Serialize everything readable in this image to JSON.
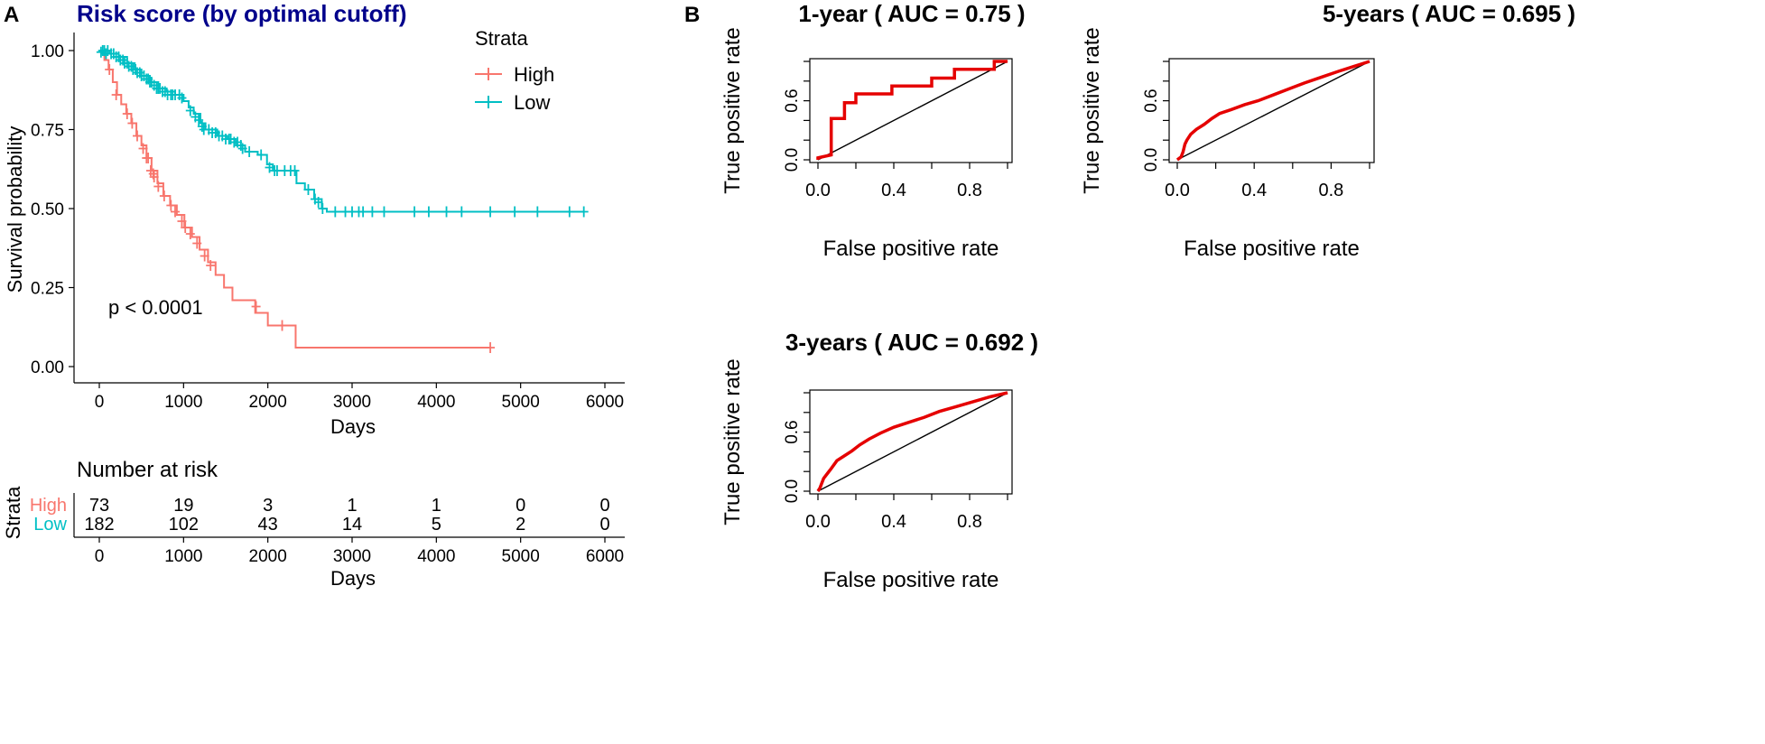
{
  "panels": {
    "a_label": "A",
    "b_label": "B"
  },
  "colors": {
    "high": "#F8766D",
    "low": "#00BFC4",
    "title": "#00008B",
    "roc": "#E50000",
    "axis": "#000000"
  },
  "chart_data": [
    {
      "id": "km",
      "type": "line",
      "title": "Risk score (by optimal cutoff)",
      "xlabel": "Days",
      "ylabel": "Survival probability",
      "xlim": [
        0,
        6000
      ],
      "ylim": [
        0,
        1
      ],
      "x_ticks": [
        0,
        1000,
        2000,
        3000,
        4000,
        5000,
        6000
      ],
      "y_ticks": [
        "0.00",
        "0.25",
        "0.50",
        "0.75",
        "1.00"
      ],
      "legend": {
        "title": "Strata",
        "position": "top-right",
        "entries": [
          "High",
          "Low"
        ]
      },
      "annotation": "p < 0.0001",
      "series": [
        {
          "name": "High",
          "steps": [
            [
              0,
              1.0
            ],
            [
              60,
              0.97
            ],
            [
              110,
              0.94
            ],
            [
              160,
              0.9
            ],
            [
              210,
              0.86
            ],
            [
              260,
              0.83
            ],
            [
              320,
              0.8
            ],
            [
              380,
              0.77
            ],
            [
              440,
              0.73
            ],
            [
              500,
              0.7
            ],
            [
              560,
              0.66
            ],
            [
              620,
              0.62
            ],
            [
              690,
              0.58
            ],
            [
              760,
              0.54
            ],
            [
              840,
              0.51
            ],
            [
              920,
              0.48
            ],
            [
              1010,
              0.44
            ],
            [
              1100,
              0.41
            ],
            [
              1190,
              0.37
            ],
            [
              1290,
              0.33
            ],
            [
              1380,
              0.29
            ],
            [
              1480,
              0.25
            ],
            [
              1580,
              0.21
            ],
            [
              1850,
              0.17
            ],
            [
              2000,
              0.13
            ],
            [
              2330,
              0.06
            ],
            [
              4640,
              0.06
            ]
          ],
          "censors": [
            [
              120,
              0.94
            ],
            [
              200,
              0.86
            ],
            [
              330,
              0.8
            ],
            [
              390,
              0.77
            ],
            [
              450,
              0.73
            ],
            [
              520,
              0.69
            ],
            [
              560,
              0.66
            ],
            [
              580,
              0.66
            ],
            [
              610,
              0.62
            ],
            [
              640,
              0.61
            ],
            [
              650,
              0.6
            ],
            [
              700,
              0.57
            ],
            [
              770,
              0.54
            ],
            [
              850,
              0.51
            ],
            [
              900,
              0.49
            ],
            [
              980,
              0.46
            ],
            [
              1020,
              0.44
            ],
            [
              1080,
              0.42
            ],
            [
              1160,
              0.39
            ],
            [
              1250,
              0.35
            ],
            [
              1320,
              0.32
            ],
            [
              1860,
              0.19
            ],
            [
              2170,
              0.13
            ],
            [
              4640,
              0.06
            ]
          ]
        },
        {
          "name": "Low",
          "steps": [
            [
              0,
              1.0
            ],
            [
              120,
              0.99
            ],
            [
              230,
              0.98
            ],
            [
              330,
              0.96
            ],
            [
              420,
              0.94
            ],
            [
              500,
              0.92
            ],
            [
              600,
              0.9
            ],
            [
              700,
              0.88
            ],
            [
              800,
              0.87
            ],
            [
              900,
              0.86
            ],
            [
              1000,
              0.84
            ],
            [
              1060,
              0.82
            ],
            [
              1120,
              0.8
            ],
            [
              1200,
              0.77
            ],
            [
              1260,
              0.75
            ],
            [
              1400,
              0.73
            ],
            [
              1520,
              0.72
            ],
            [
              1620,
              0.7
            ],
            [
              1730,
              0.68
            ],
            [
              1880,
              0.67
            ],
            [
              1990,
              0.64
            ],
            [
              2060,
              0.62
            ],
            [
              2340,
              0.58
            ],
            [
              2440,
              0.56
            ],
            [
              2550,
              0.53
            ],
            [
              2640,
              0.5
            ],
            [
              2700,
              0.49
            ],
            [
              5750,
              0.49
            ]
          ],
          "censors": [
            [
              20,
              0.995
            ],
            [
              40,
              1.0
            ],
            [
              60,
              1.0
            ],
            [
              80,
              0.99
            ],
            [
              100,
              1.0
            ],
            [
              140,
              0.99
            ],
            [
              170,
              0.99
            ],
            [
              200,
              0.98
            ],
            [
              230,
              0.98
            ],
            [
              250,
              0.97
            ],
            [
              280,
              0.97
            ],
            [
              300,
              0.96
            ],
            [
              330,
              0.96
            ],
            [
              350,
              0.95
            ],
            [
              380,
              0.95
            ],
            [
              400,
              0.94
            ],
            [
              430,
              0.94
            ],
            [
              450,
              0.93
            ],
            [
              480,
              0.93
            ],
            [
              500,
              0.92
            ],
            [
              530,
              0.92
            ],
            [
              560,
              0.91
            ],
            [
              580,
              0.91
            ],
            [
              600,
              0.9
            ],
            [
              620,
              0.9
            ],
            [
              650,
              0.89
            ],
            [
              680,
              0.88
            ],
            [
              700,
              0.88
            ],
            [
              720,
              0.88
            ],
            [
              750,
              0.87
            ],
            [
              780,
              0.87
            ],
            [
              810,
              0.86
            ],
            [
              850,
              0.86
            ],
            [
              870,
              0.86
            ],
            [
              900,
              0.86
            ],
            [
              950,
              0.86
            ],
            [
              980,
              0.85
            ],
            [
              1080,
              0.81
            ],
            [
              1140,
              0.79
            ],
            [
              1180,
              0.78
            ],
            [
              1220,
              0.76
            ],
            [
              1240,
              0.75
            ],
            [
              1300,
              0.75
            ],
            [
              1340,
              0.74
            ],
            [
              1380,
              0.74
            ],
            [
              1420,
              0.73
            ],
            [
              1460,
              0.73
            ],
            [
              1500,
              0.72
            ],
            [
              1540,
              0.72
            ],
            [
              1560,
              0.72
            ],
            [
              1600,
              0.71
            ],
            [
              1640,
              0.71
            ],
            [
              1680,
              0.7
            ],
            [
              1700,
              0.69
            ],
            [
              1780,
              0.68
            ],
            [
              1920,
              0.67
            ],
            [
              2020,
              0.63
            ],
            [
              2080,
              0.62
            ],
            [
              2110,
              0.62
            ],
            [
              2200,
              0.62
            ],
            [
              2270,
              0.62
            ],
            [
              2320,
              0.62
            ],
            [
              2480,
              0.56
            ],
            [
              2560,
              0.53
            ],
            [
              2600,
              0.52
            ],
            [
              2650,
              0.5
            ],
            [
              2800,
              0.49
            ],
            [
              2920,
              0.49
            ],
            [
              3000,
              0.49
            ],
            [
              3080,
              0.49
            ],
            [
              3130,
              0.49
            ],
            [
              3240,
              0.49
            ],
            [
              3380,
              0.49
            ],
            [
              3740,
              0.49
            ],
            [
              3910,
              0.49
            ],
            [
              4120,
              0.49
            ],
            [
              4300,
              0.49
            ],
            [
              4640,
              0.49
            ],
            [
              4930,
              0.49
            ],
            [
              5200,
              0.49
            ],
            [
              5580,
              0.49
            ],
            [
              5750,
              0.49
            ]
          ]
        }
      ]
    },
    {
      "id": "risk",
      "type": "table",
      "title": "Number at risk",
      "xlabel": "Days",
      "ylabel": "Strata",
      "xlim": [
        0,
        6000
      ],
      "x_ticks": [
        0,
        1000,
        2000,
        3000,
        4000,
        5000,
        6000
      ],
      "rows": [
        {
          "name": "High",
          "values": [
            73,
            19,
            3,
            1,
            1,
            0,
            0
          ]
        },
        {
          "name": "Low",
          "values": [
            182,
            102,
            43,
            14,
            5,
            2,
            0
          ]
        }
      ]
    },
    {
      "id": "roc1",
      "type": "line",
      "title": "1-year ( AUC =  0.75 )",
      "xlabel": "False positive rate",
      "ylabel": "True positive rate",
      "xlim": [
        0,
        1
      ],
      "ylim": [
        0,
        1
      ],
      "x_ticks": [
        "0.0",
        "0.4",
        "0.8"
      ],
      "y_ticks": [
        "0.0",
        "0.6"
      ],
      "series": [
        {
          "name": "ROC",
          "points": [
            [
              0,
              0
            ],
            [
              0,
              0.02
            ],
            [
              0.07,
              0.05
            ],
            [
              0.07,
              0.42
            ],
            [
              0.14,
              0.42
            ],
            [
              0.14,
              0.58
            ],
            [
              0.2,
              0.58
            ],
            [
              0.2,
              0.67
            ],
            [
              0.39,
              0.67
            ],
            [
              0.39,
              0.75
            ],
            [
              0.6,
              0.75
            ],
            [
              0.6,
              0.83
            ],
            [
              0.72,
              0.83
            ],
            [
              0.72,
              0.92
            ],
            [
              0.93,
              0.92
            ],
            [
              0.93,
              1.0
            ],
            [
              1.0,
              1.0
            ]
          ]
        }
      ]
    },
    {
      "id": "roc5",
      "type": "line",
      "title": "5-years ( AUC =  0.695 )",
      "xlabel": "False positive rate",
      "ylabel": "True positive rate",
      "xlim": [
        0,
        1
      ],
      "ylim": [
        0,
        1
      ],
      "x_ticks": [
        "0.0",
        "0.4",
        "0.8"
      ],
      "y_ticks": [
        "0.0",
        "0.6"
      ],
      "series": [
        {
          "name": "ROC",
          "points": [
            [
              0,
              0
            ],
            [
              0.02,
              0.03
            ],
            [
              0.03,
              0.08
            ],
            [
              0.04,
              0.16
            ],
            [
              0.05,
              0.2
            ],
            [
              0.07,
              0.26
            ],
            [
              0.1,
              0.31
            ],
            [
              0.14,
              0.36
            ],
            [
              0.18,
              0.42
            ],
            [
              0.22,
              0.47
            ],
            [
              0.28,
              0.51
            ],
            [
              0.35,
              0.56
            ],
            [
              0.42,
              0.6
            ],
            [
              0.5,
              0.66
            ],
            [
              0.58,
              0.72
            ],
            [
              0.66,
              0.78
            ],
            [
              0.75,
              0.84
            ],
            [
              0.84,
              0.9
            ],
            [
              0.92,
              0.95
            ],
            [
              1.0,
              1.0
            ]
          ]
        }
      ]
    },
    {
      "id": "roc3",
      "type": "line",
      "title": "3-years ( AUC =  0.692 )",
      "xlabel": "False positive rate",
      "ylabel": "True positive rate",
      "xlim": [
        0,
        1
      ],
      "ylim": [
        0,
        1
      ],
      "x_ticks": [
        "0.0",
        "0.4",
        "0.8"
      ],
      "y_ticks": [
        "0.0",
        "0.6"
      ],
      "series": [
        {
          "name": "ROC",
          "points": [
            [
              0,
              0
            ],
            [
              0.01,
              0.03
            ],
            [
              0.02,
              0.08
            ],
            [
              0.03,
              0.13
            ],
            [
              0.05,
              0.18
            ],
            [
              0.07,
              0.23
            ],
            [
              0.1,
              0.31
            ],
            [
              0.14,
              0.36
            ],
            [
              0.18,
              0.41
            ],
            [
              0.22,
              0.47
            ],
            [
              0.27,
              0.53
            ],
            [
              0.33,
              0.59
            ],
            [
              0.4,
              0.65
            ],
            [
              0.48,
              0.7
            ],
            [
              0.56,
              0.75
            ],
            [
              0.64,
              0.81
            ],
            [
              0.73,
              0.86
            ],
            [
              0.82,
              0.91
            ],
            [
              0.91,
              0.96
            ],
            [
              1.0,
              1.0
            ]
          ]
        }
      ]
    }
  ]
}
